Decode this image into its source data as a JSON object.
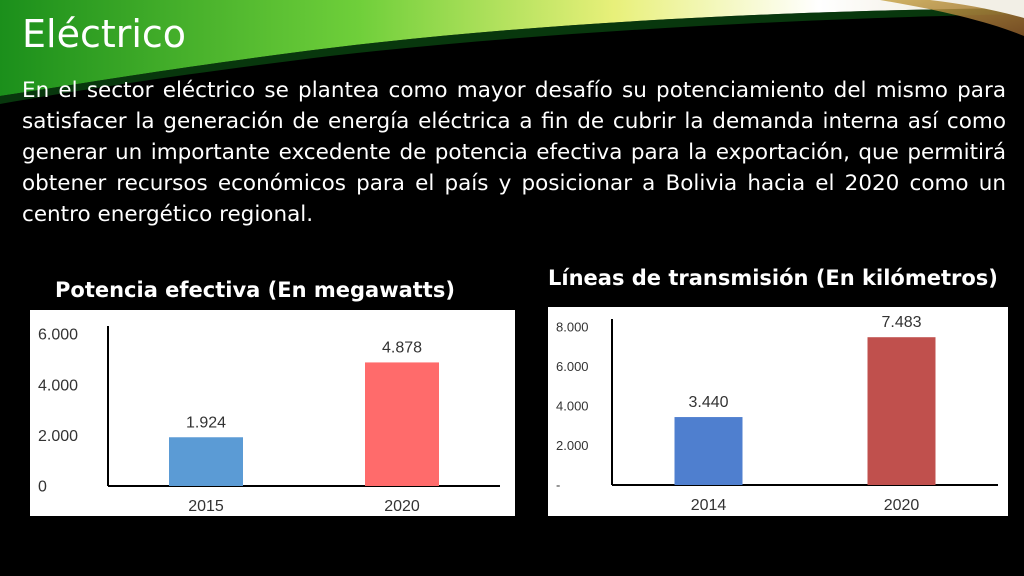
{
  "slide": {
    "title": "Eléctrico",
    "paragraph": "En el sector eléctrico se plantea como mayor desafío su potenciamiento del mismo para satisfacer la generación de energía eléctrica a fin de cubrir la demanda interna así como generar un importante excedente de potencia efectiva para la exportación, que permitirá obtener recursos económicos para el país y posicionar a Bolivia hacia el 2020 como un centro energético regional."
  },
  "chart_data": [
    {
      "type": "bar",
      "title": "Potencia efectiva (En megawatts)",
      "categories": [
        "2015",
        "2020"
      ],
      "values": [
        1924,
        4878
      ],
      "value_labels": [
        "1.924",
        "4.878"
      ],
      "ylim": [
        0,
        6000
      ],
      "yticks": [
        0,
        2000,
        4000,
        6000
      ],
      "ytick_labels": [
        "0",
        "2.000",
        "4.000",
        "6.000"
      ],
      "bar_colors": [
        "#5b9bd5",
        "#ff6b6b"
      ],
      "grid": false
    },
    {
      "type": "bar",
      "title": "Líneas de transmisión (En kilómetros)",
      "categories": [
        "2014",
        "2020"
      ],
      "values": [
        3440,
        7483
      ],
      "value_labels": [
        "3.440",
        "7.483"
      ],
      "ylim": [
        0,
        8000
      ],
      "yticks": [
        0,
        2000,
        4000,
        6000,
        8000
      ],
      "ytick_labels": [
        "-",
        "2.000",
        "4.000",
        "6.000",
        "8.000"
      ],
      "bar_colors": [
        "#4f7fcf",
        "#c0504d"
      ],
      "grid": false
    }
  ]
}
